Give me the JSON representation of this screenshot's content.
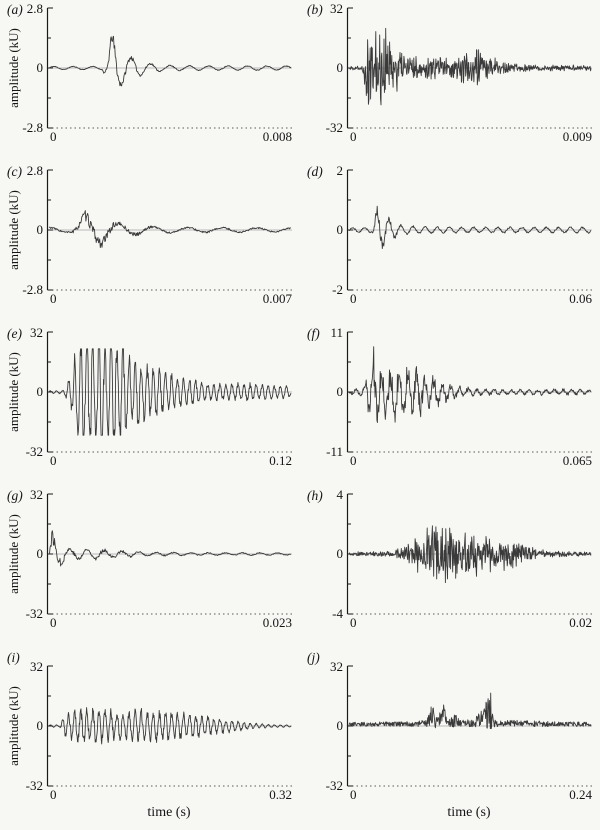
{
  "figure": {
    "background": "#f7f7f4",
    "line_color": "#3a3a3a",
    "zero_line_color": "#b8b8b8",
    "axis_color": "#1a1a1a",
    "dotted_baseline_color": "#5a5a5a"
  },
  "chart_data": {
    "type": "line",
    "title": "",
    "ylabel": "amplitude (kU)",
    "xlabel": "time (s)",
    "layout": "5 rows x 2 columns of oscillogram panels; y-axis label on left column only, x-axis label under bottom row only; dotted baseline at y-min, light grey zero line",
    "panels": [
      {
        "id": "a",
        "label": "(a)",
        "ymax": "2.8",
        "yzero": "0",
        "ymin": "-2.8",
        "x0": "0",
        "xmax": "0.008",
        "ylim": [
          -2.8,
          2.8
        ],
        "xlim": [
          0,
          0.008
        ],
        "show_ylabel": true,
        "show_xlabel": false,
        "waveform": {
          "n": 420,
          "freq": 12.5,
          "phase": 0,
          "osc": 0.85,
          "noise": 0.18,
          "clip": 1.2,
          "seed": 11,
          "envelope": [
            [
              0,
              0.03
            ],
            [
              0.22,
              0.03
            ],
            [
              0.245,
              0.3
            ],
            [
              0.26,
              0.64
            ],
            [
              0.3,
              0.3
            ],
            [
              0.34,
              0.2
            ],
            [
              0.4,
              0.1
            ],
            [
              0.48,
              0.05
            ],
            [
              0.65,
              0.04
            ],
            [
              1,
              0.04
            ]
          ]
        }
      },
      {
        "id": "b",
        "label": "(b)",
        "ymax": "32",
        "yzero": "0",
        "ymin": "-32",
        "x0": "0",
        "xmax": "0.009",
        "ylim": [
          -32,
          32
        ],
        "xlim": [
          0,
          0.009
        ],
        "show_ylabel": false,
        "show_xlabel": false,
        "waveform": {
          "n": 560,
          "freq": 120,
          "phase": 0,
          "osc": 0.35,
          "noise": 0.85,
          "clip": 1.2,
          "seed": 22,
          "envelope": [
            [
              0,
              0.03
            ],
            [
              0.055,
              0.04
            ],
            [
              0.075,
              0.55
            ],
            [
              0.1,
              0.65
            ],
            [
              0.13,
              0.55
            ],
            [
              0.155,
              0.6
            ],
            [
              0.18,
              0.3
            ],
            [
              0.21,
              0.35
            ],
            [
              0.25,
              0.18
            ],
            [
              0.3,
              0.15
            ],
            [
              0.35,
              0.18
            ],
            [
              0.4,
              0.16
            ],
            [
              0.45,
              0.2
            ],
            [
              0.5,
              0.28
            ],
            [
              0.54,
              0.32
            ],
            [
              0.58,
              0.25
            ],
            [
              0.62,
              0.12
            ],
            [
              0.68,
              0.06
            ],
            [
              0.78,
              0.05
            ],
            [
              1,
              0.04
            ]
          ]
        }
      },
      {
        "id": "c",
        "label": "(c)",
        "ymax": "2.8",
        "yzero": "0",
        "ymin": "-2.8",
        "x0": "0",
        "xmax": "0.007",
        "ylim": [
          -2.8,
          2.8
        ],
        "xlim": [
          0,
          0.007
        ],
        "show_ylabel": true,
        "show_xlabel": false,
        "waveform": {
          "n": 420,
          "freq": 7,
          "phase": 0.235,
          "osc": 0.8,
          "noise": 0.3,
          "clip": 1.2,
          "seed": 33,
          "envelope": [
            [
              0,
              0.05
            ],
            [
              0.09,
              0.05
            ],
            [
              0.12,
              0.18
            ],
            [
              0.15,
              0.3
            ],
            [
              0.22,
              0.27
            ],
            [
              0.28,
              0.13
            ],
            [
              0.34,
              0.1
            ],
            [
              0.42,
              0.07
            ],
            [
              0.55,
              0.05
            ],
            [
              1,
              0.04
            ]
          ]
        }
      },
      {
        "id": "d",
        "label": "(d)",
        "ymax": "2",
        "yzero": "0",
        "ymin": "-2",
        "x0": "0",
        "xmax": "0.06",
        "ylim": [
          -2,
          2
        ],
        "xlim": [
          0,
          0.06
        ],
        "show_ylabel": false,
        "show_xlabel": false,
        "waveform": {
          "n": 480,
          "freq": 20,
          "phase": 0.95,
          "osc": 0.85,
          "noise": 0.25,
          "clip": 1.2,
          "seed": 44,
          "envelope": [
            [
              0,
              0.04
            ],
            [
              0.095,
              0.05
            ],
            [
              0.115,
              0.4
            ],
            [
              0.15,
              0.28
            ],
            [
              0.2,
              0.1
            ],
            [
              0.28,
              0.06
            ],
            [
              0.5,
              0.05
            ],
            [
              1,
              0.05
            ]
          ]
        }
      },
      {
        "id": "e",
        "label": "(e)",
        "ymax": "32",
        "yzero": "0",
        "ymin": "-32",
        "x0": "0",
        "xmax": "0.12",
        "ylim": [
          -32,
          32
        ],
        "xlim": [
          0,
          0.12
        ],
        "show_ylabel": true,
        "show_xlabel": false,
        "waveform": {
          "n": 520,
          "freq": 40,
          "phase": 0,
          "osc": 0.9,
          "noise": 0.3,
          "clip": 0.72,
          "seed": 55,
          "envelope": [
            [
              0,
              0.02
            ],
            [
              0.06,
              0.03
            ],
            [
              0.09,
              0.25
            ],
            [
              0.12,
              0.8
            ],
            [
              0.14,
              1.0
            ],
            [
              0.27,
              1.0
            ],
            [
              0.3,
              0.8
            ],
            [
              0.33,
              0.55
            ],
            [
              0.36,
              0.6
            ],
            [
              0.4,
              0.4
            ],
            [
              0.45,
              0.38
            ],
            [
              0.5,
              0.28
            ],
            [
              0.55,
              0.22
            ],
            [
              0.6,
              0.18
            ],
            [
              0.65,
              0.14
            ],
            [
              0.72,
              0.12
            ],
            [
              0.8,
              0.14
            ],
            [
              0.88,
              0.12
            ],
            [
              1,
              0.1
            ]
          ]
        }
      },
      {
        "id": "f",
        "label": "(f)",
        "ymax": "11",
        "yzero": "0",
        "ymin": "-11",
        "x0": "0",
        "xmax": "0.065",
        "ylim": [
          -11,
          11
        ],
        "xlim": [
          0,
          0.065
        ],
        "show_ylabel": false,
        "show_xlabel": false,
        "waveform": {
          "n": 520,
          "freq": 28,
          "phase": 0.45,
          "osc": 0.75,
          "noise": 0.5,
          "clip": 1.2,
          "seed": 66,
          "envelope": [
            [
              0,
              0.03
            ],
            [
              0.05,
              0.06
            ],
            [
              0.08,
              0.35
            ],
            [
              0.1,
              0.72
            ],
            [
              0.13,
              0.5
            ],
            [
              0.17,
              0.4
            ],
            [
              0.21,
              0.42
            ],
            [
              0.26,
              0.38
            ],
            [
              0.31,
              0.32
            ],
            [
              0.36,
              0.25
            ],
            [
              0.41,
              0.15
            ],
            [
              0.47,
              0.08
            ],
            [
              0.55,
              0.05
            ],
            [
              0.7,
              0.04
            ],
            [
              0.85,
              0.05
            ],
            [
              1,
              0.04
            ]
          ]
        }
      },
      {
        "id": "g",
        "label": "(g)",
        "ymax": "32",
        "yzero": "0",
        "ymin": "-32",
        "x0": "0",
        "xmax": "0.023",
        "ylim": [
          -32,
          32
        ],
        "xlim": [
          0,
          0.023
        ],
        "show_ylabel": true,
        "show_xlabel": false,
        "waveform": {
          "n": 440,
          "freq": 14,
          "phase": 0.04,
          "osc": 0.8,
          "noise": 0.35,
          "clip": 1.2,
          "seed": 77,
          "envelope": [
            [
              0,
              0.06
            ],
            [
              0.012,
              0.38
            ],
            [
              0.03,
              0.22
            ],
            [
              0.05,
              0.18
            ],
            [
              0.07,
              0.12
            ],
            [
              0.1,
              0.09
            ],
            [
              0.13,
              0.11
            ],
            [
              0.17,
              0.08
            ],
            [
              0.21,
              0.1
            ],
            [
              0.25,
              0.07
            ],
            [
              0.3,
              0.06
            ],
            [
              0.37,
              0.04
            ],
            [
              0.48,
              0.03
            ],
            [
              0.65,
              0.025
            ],
            [
              1,
              0.02
            ]
          ]
        }
      },
      {
        "id": "h",
        "label": "(h)",
        "ymax": "4",
        "yzero": "0",
        "ymin": "-4",
        "x0": "0",
        "xmax": "0.02",
        "ylim": [
          -4,
          4
        ],
        "xlim": [
          0,
          0.02
        ],
        "show_ylabel": false,
        "show_xlabel": false,
        "waveform": {
          "n": 560,
          "freq": 140,
          "phase": 0,
          "osc": 0.3,
          "noise": 0.9,
          "clip": 1.2,
          "seed": 88,
          "envelope": [
            [
              0,
              0.03
            ],
            [
              0.16,
              0.04
            ],
            [
              0.23,
              0.1
            ],
            [
              0.29,
              0.28
            ],
            [
              0.34,
              0.42
            ],
            [
              0.39,
              0.5
            ],
            [
              0.44,
              0.42
            ],
            [
              0.49,
              0.35
            ],
            [
              0.54,
              0.3
            ],
            [
              0.6,
              0.25
            ],
            [
              0.66,
              0.22
            ],
            [
              0.72,
              0.15
            ],
            [
              0.78,
              0.07
            ],
            [
              0.86,
              0.04
            ],
            [
              1,
              0.03
            ]
          ]
        }
      },
      {
        "id": "i",
        "label": "(i)",
        "ymax": "32",
        "yzero": "0",
        "ymin": "-32",
        "x0": "0",
        "xmax": "0.32",
        "ylim": [
          -32,
          32
        ],
        "xlim": [
          0,
          0.32
        ],
        "show_ylabel": true,
        "show_xlabel": true,
        "waveform": {
          "n": 560,
          "freq": 40,
          "phase": 0,
          "osc": 0.85,
          "noise": 0.3,
          "clip": 1.2,
          "seed": 99,
          "envelope": [
            [
              0,
              0.02
            ],
            [
              0.045,
              0.02
            ],
            [
              0.06,
              0.18
            ],
            [
              0.09,
              0.25
            ],
            [
              0.13,
              0.3
            ],
            [
              0.2,
              0.28
            ],
            [
              0.3,
              0.27
            ],
            [
              0.4,
              0.26
            ],
            [
              0.5,
              0.24
            ],
            [
              0.58,
              0.21
            ],
            [
              0.65,
              0.16
            ],
            [
              0.72,
              0.12
            ],
            [
              0.78,
              0.08
            ],
            [
              0.84,
              0.05
            ],
            [
              0.89,
              0.03
            ],
            [
              0.94,
              0.02
            ],
            [
              1,
              0.02
            ]
          ]
        }
      },
      {
        "id": "j",
        "label": "(j)",
        "ymax": "32",
        "yzero": "0",
        "ymin": "-32",
        "x0": "0",
        "xmax": "0.24",
        "ylim": [
          -32,
          32
        ],
        "xlim": [
          0,
          0.24
        ],
        "show_ylabel": false,
        "show_xlabel": true,
        "waveform": {
          "n": 560,
          "freq": 0,
          "phase": 0.25,
          "osc": 0.55,
          "noise": 0.7,
          "clip": 1.2,
          "seed": 110,
          "envelope": [
            [
              0,
              0.05
            ],
            [
              0.27,
              0.06
            ],
            [
              0.32,
              0.08
            ],
            [
              0.345,
              0.38
            ],
            [
              0.365,
              0.1
            ],
            [
              0.39,
              0.3
            ],
            [
              0.41,
              0.09
            ],
            [
              0.44,
              0.16
            ],
            [
              0.465,
              0.08
            ],
            [
              0.52,
              0.09
            ],
            [
              0.585,
              0.5
            ],
            [
              0.605,
              0.09
            ],
            [
              0.66,
              0.08
            ],
            [
              0.75,
              0.07
            ],
            [
              0.85,
              0.06
            ],
            [
              1,
              0.05
            ]
          ]
        }
      }
    ]
  }
}
